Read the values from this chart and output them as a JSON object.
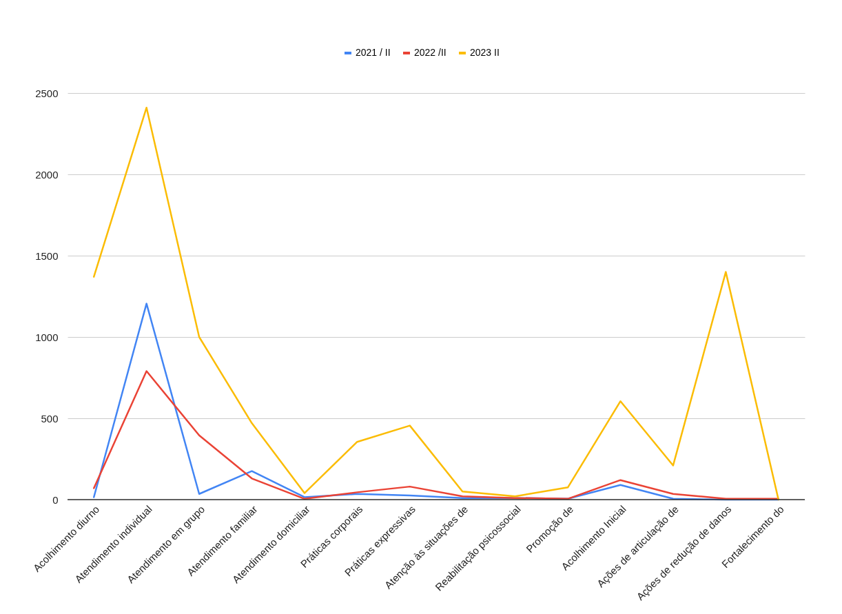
{
  "chart_data": {
    "type": "line",
    "categories": [
      "Acolhimento diurno",
      "Atendimento individual",
      "Atendimento em grupo",
      "Atendimento familiar",
      "Atendimento domiciliar",
      "Práticas corporais",
      "Práticas expressivas",
      "Atenção às situações de",
      "Reabilitação psicossocial",
      "Promoção de",
      "Acolhimento Inicial",
      "Ações de articulação de",
      "Ações de redução de danos",
      "Fortalecimento do"
    ],
    "series": [
      {
        "name": "2021 / II",
        "color": "#4285f4",
        "values": [
          15,
          1205,
          35,
          175,
          15,
          35,
          25,
          10,
          10,
          5,
          90,
          5,
          0,
          0
        ]
      },
      {
        "name": "2022 /II",
        "color": "#ea4335",
        "values": [
          70,
          790,
          395,
          130,
          5,
          45,
          80,
          20,
          10,
          5,
          120,
          35,
          5,
          5
        ]
      },
      {
        "name": "2023 II",
        "color": "#fbbc04",
        "values": [
          1370,
          2410,
          1000,
          470,
          40,
          355,
          455,
          50,
          20,
          75,
          605,
          210,
          1400,
          0
        ]
      }
    ],
    "ylim": [
      0,
      2500
    ],
    "yticks": [
      0,
      500,
      1000,
      1500,
      2000,
      2500
    ],
    "grid": "y",
    "legend": "top",
    "marker": "none",
    "line_style": "solid"
  }
}
